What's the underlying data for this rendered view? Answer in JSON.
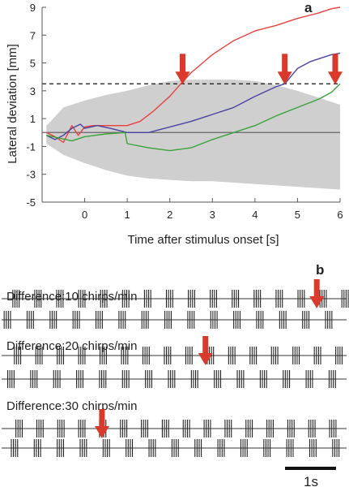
{
  "chart_data": [
    {
      "panel": "a",
      "type": "line",
      "xlabel": "Time after stimulus onset [s]",
      "ylabel": "Lateral deviation [mm]",
      "xlim": [
        -1,
        6
      ],
      "ylim": [
        -5,
        9
      ],
      "xticks": [
        0,
        1,
        2,
        3,
        4,
        5,
        6
      ],
      "yticks": [
        -5,
        -3,
        -1,
        1,
        3,
        5,
        7,
        9
      ],
      "grid": false,
      "threshold": 3.5,
      "zero_line": 0,
      "band": {
        "x": [
          -0.9,
          -0.8,
          -0.5,
          0,
          0.5,
          1,
          1.5,
          2,
          2.5,
          3,
          3.5,
          4,
          4.5,
          5,
          5.5,
          6
        ],
        "upper": [
          0.5,
          0.8,
          1.8,
          2.3,
          2.7,
          3.0,
          3.4,
          3.7,
          3.8,
          3.8,
          3.8,
          3.7,
          3.4,
          3.0,
          2.5,
          2.0
        ],
        "lower": [
          -0.8,
          -1.0,
          -1.6,
          -2.2,
          -2.7,
          -3.1,
          -3.3,
          -3.4,
          -3.5,
          -3.5,
          -3.6,
          -3.7,
          -3.8,
          -3.9,
          -4.0,
          -4.1
        ]
      },
      "series": [
        {
          "color": "#e8403c",
          "x": [
            -0.9,
            -0.7,
            -0.5,
            -0.3,
            -0.15,
            0,
            0.2,
            0.5,
            1,
            1.3,
            1.6,
            2.0,
            2.2,
            2.5,
            3.0,
            3.5,
            4.0,
            4.5,
            5.0,
            5.5,
            5.8,
            6.0
          ],
          "y": [
            0.0,
            -0.3,
            -0.7,
            0.5,
            -0.2,
            0.4,
            0.5,
            0.5,
            0.5,
            0.8,
            1.5,
            2.6,
            3.3,
            4.3,
            5.6,
            6.6,
            7.3,
            7.7,
            8.2,
            8.6,
            8.9,
            9.0
          ]
        },
        {
          "color": "#4a44a3",
          "x": [
            -0.9,
            -0.7,
            -0.5,
            -0.3,
            -0.1,
            0,
            0.3,
            0.6,
            1,
            1.5,
            2.0,
            2.5,
            3.0,
            3.5,
            4.0,
            4.5,
            4.7,
            5.0,
            5.3,
            5.6,
            5.8,
            6.0
          ],
          "y": [
            -0.2,
            -0.5,
            -0.2,
            0.3,
            0.6,
            0.3,
            0.5,
            0.3,
            0.0,
            0.0,
            0.4,
            0.8,
            1.3,
            1.8,
            2.6,
            3.3,
            3.5,
            4.6,
            5.1,
            5.4,
            5.6,
            5.7
          ]
        },
        {
          "color": "#3aa33a",
          "x": [
            -0.9,
            -0.6,
            -0.3,
            0,
            0.5,
            0.95,
            1.0,
            1.5,
            2.0,
            2.5,
            3.0,
            3.5,
            4.0,
            4.5,
            5.0,
            5.5,
            5.8,
            6.0
          ],
          "y": [
            -0.2,
            -0.4,
            -0.6,
            -0.3,
            -0.1,
            0.0,
            -0.8,
            -1.1,
            -1.3,
            -1.1,
            -0.5,
            0.0,
            0.5,
            1.2,
            1.8,
            2.4,
            2.9,
            3.5
          ]
        }
      ],
      "arrows_x": [
        2.3,
        4.7,
        6.0
      ]
    },
    {
      "panel": "b",
      "type": "raster",
      "scale_bar": "1s",
      "groups": [
        {
          "label": "Difference:10 chirps/min",
          "period_top": 0.43,
          "period_bottom": 0.45,
          "arrow_at": 10.05
        },
        {
          "label": "Difference:20 chirps/min",
          "period_top": 0.42,
          "period_bottom": 0.45,
          "arrow_at": 6.5
        },
        {
          "label": "Difference:30 chirps/min",
          "period_top": 0.41,
          "period_bottom": 0.45,
          "arrow_at": 3.2
        }
      ]
    }
  ],
  "panel_a_label": "a",
  "panel_b_label": "b",
  "colors": {
    "band": "#cfcfcf",
    "axis": "#555555",
    "arrow": "#d93a2b",
    "raster": "#222222"
  }
}
